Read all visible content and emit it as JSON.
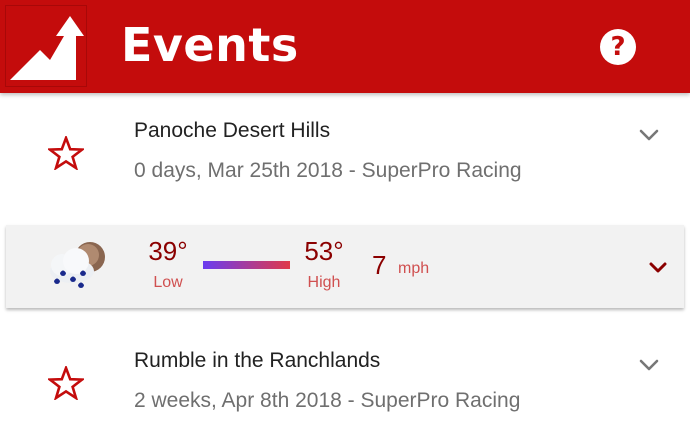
{
  "colors": {
    "brand_red": "#c40c0c",
    "temp_red": "#8b0000",
    "label_red": "#d05050",
    "bar_cold": "#6a3cf0",
    "bar_hot": "#e03a4a"
  },
  "header": {
    "title": "Events",
    "logo_icon": "up-right-arrow-logo-icon",
    "help_icon": "help-icon",
    "help_glyph": "?"
  },
  "events": [
    {
      "name": "Panoche Desert Hills",
      "subtitle": "0 days, Mar 25th 2018 - SuperPro Racing",
      "favorite_icon": "star-outline-icon",
      "expand_icon": "chevron-down-icon"
    },
    {
      "name": "Rumble in the Ranchlands",
      "subtitle": "2 weeks, Apr 8th 2018 - SuperPro Racing",
      "favorite_icon": "star-outline-icon",
      "expand_icon": "chevron-down-icon"
    }
  ],
  "weather": {
    "condition_icon": "rain-cloud-icon",
    "low_temp": "39°",
    "low_label": "Low",
    "high_temp": "53°",
    "high_label": "High",
    "wind_speed": "7",
    "wind_unit": "mph",
    "expand_icon": "chevron-down-icon"
  }
}
